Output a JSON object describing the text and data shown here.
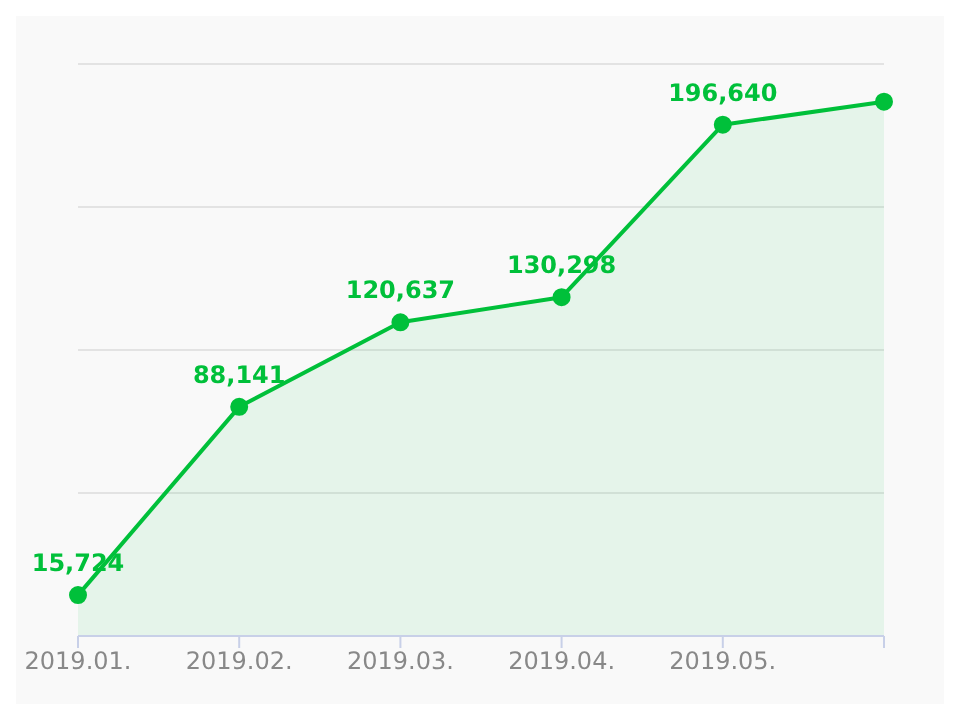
{
  "chart_data": {
    "type": "area",
    "categories": [
      "2019.01.",
      "2019.02.",
      "2019.03.",
      "2019.04.",
      "2019.05.",
      null
    ],
    "series": [
      {
        "color": "#00c03a",
        "values": [
          15724,
          88141,
          120637,
          130298,
          196640,
          205500
        ],
        "value_labels": [
          "15,724",
          "88,141",
          "120,637",
          "130,298",
          "196,640",
          null
        ]
      }
    ],
    "tick_labels": "x",
    "grid": "y",
    "marker": "circle",
    "line_style": "solid"
  }
}
